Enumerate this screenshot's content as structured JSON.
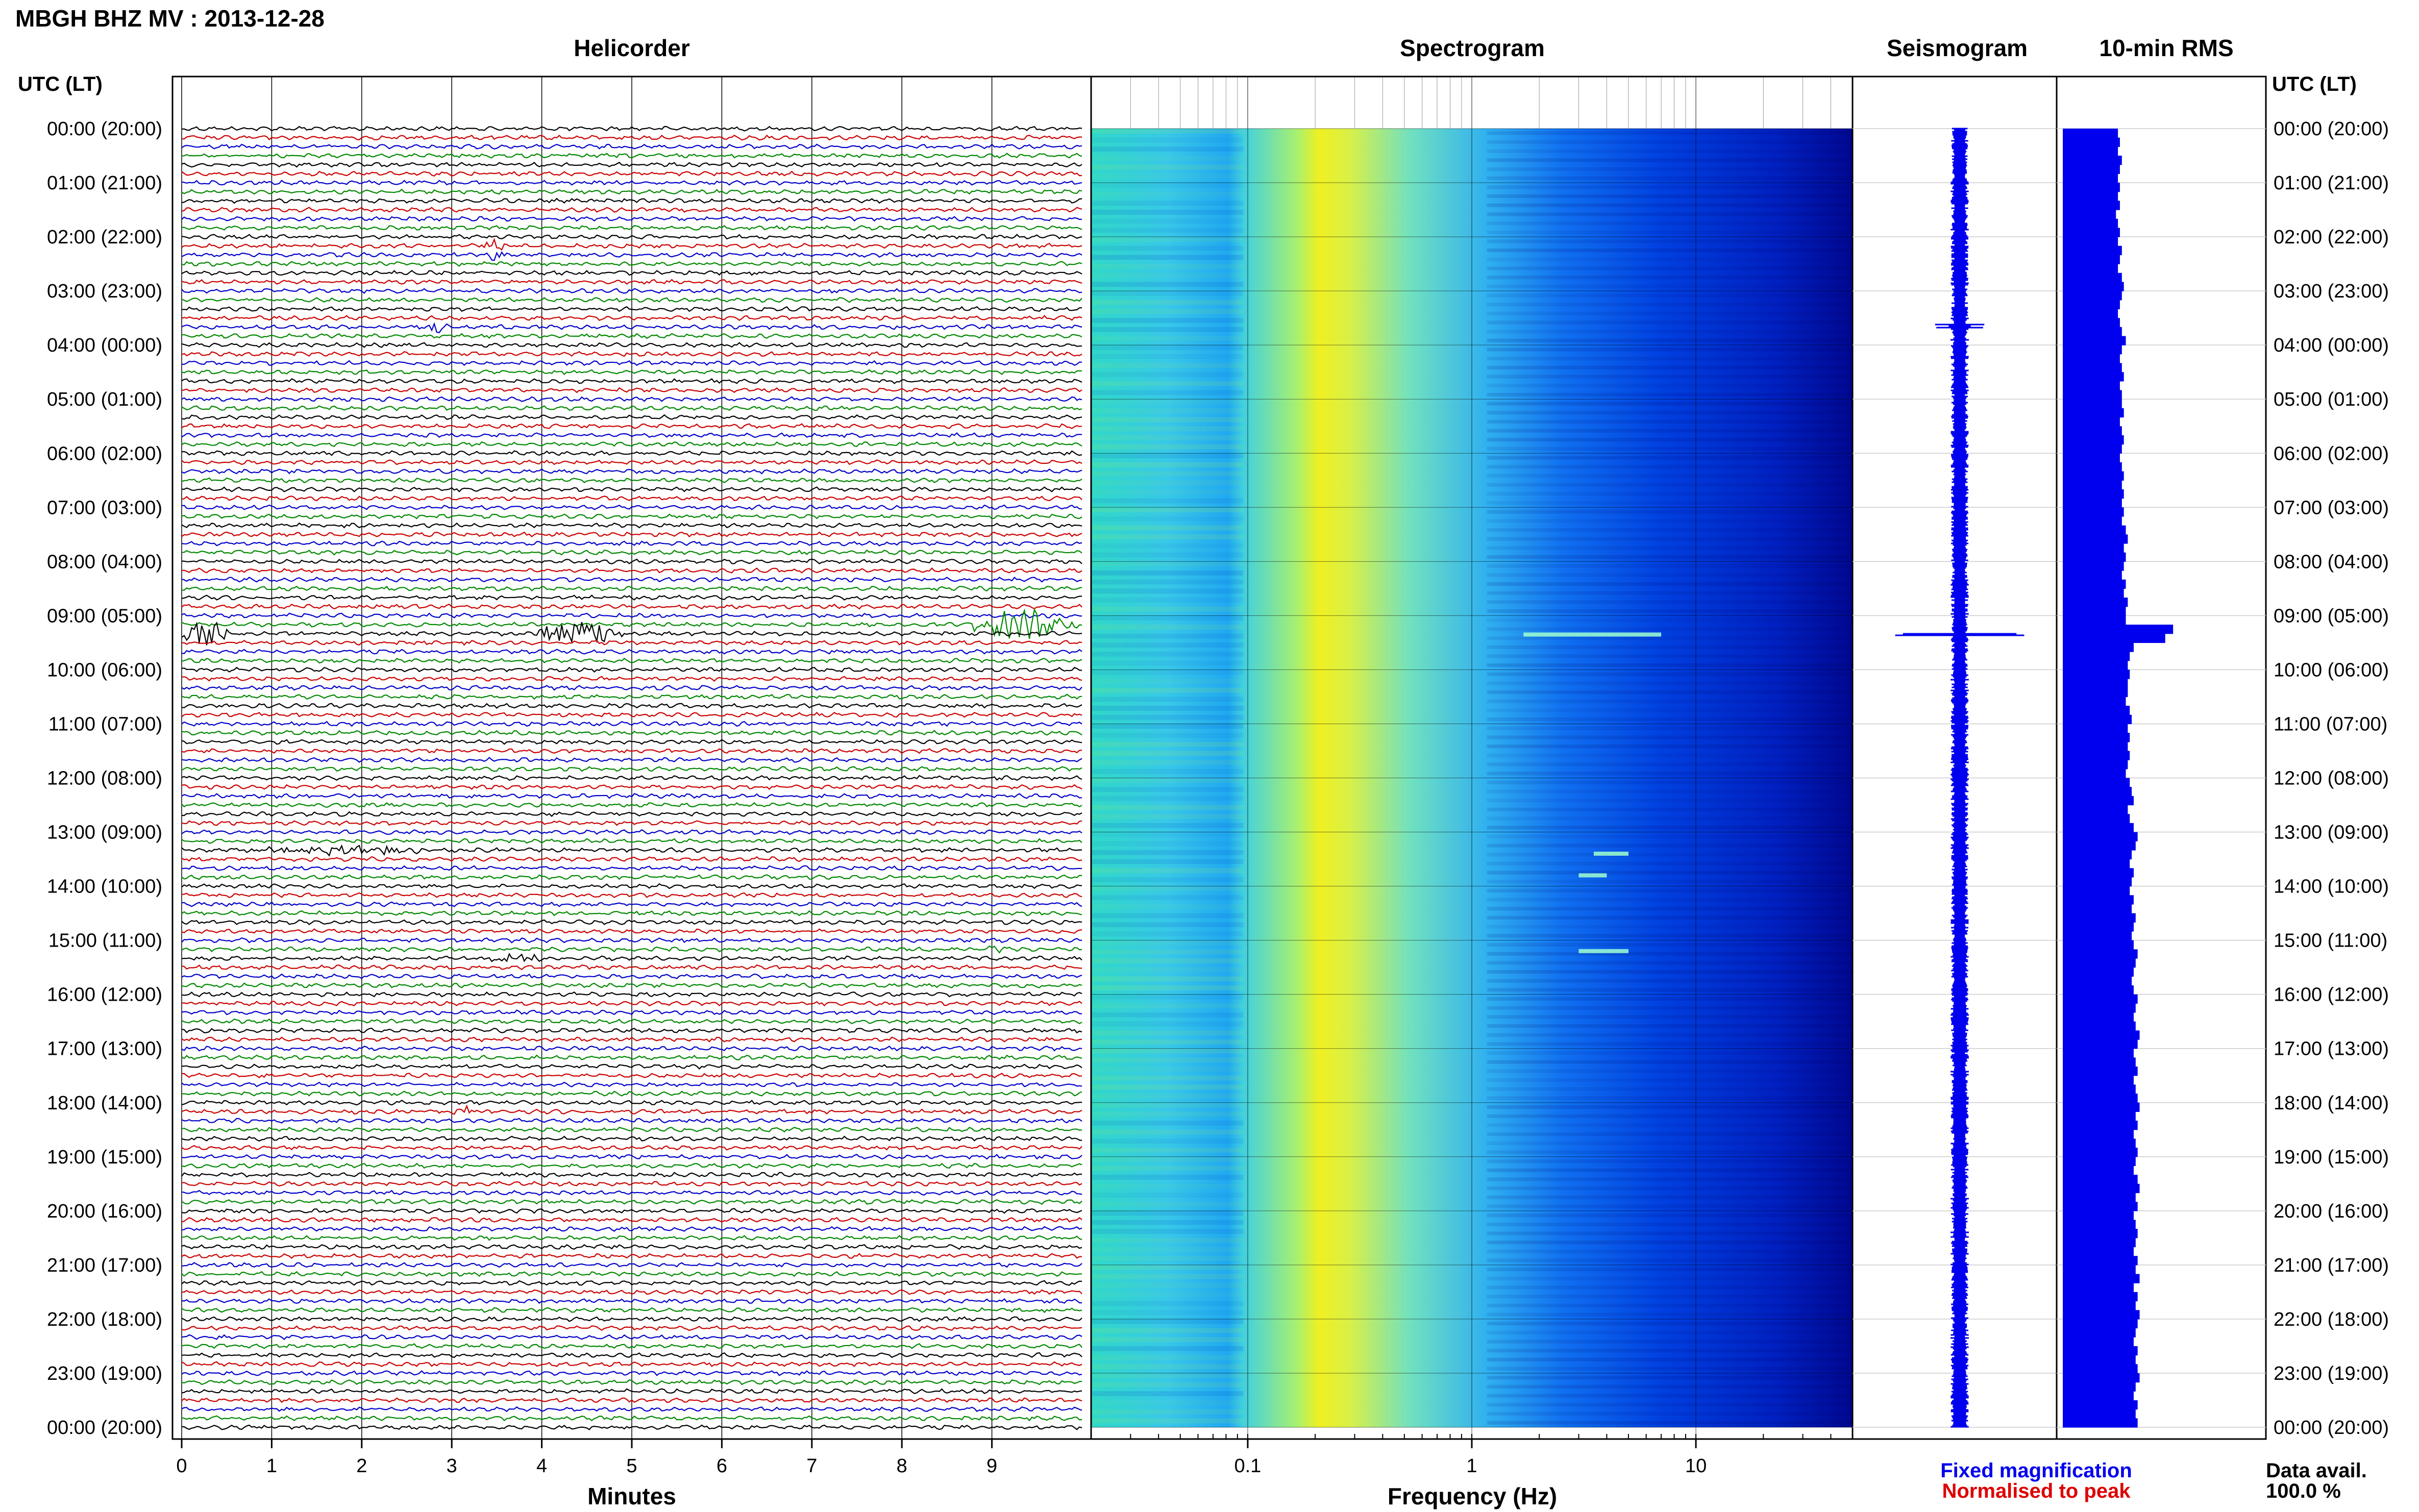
{
  "header": {
    "title": "MBGH BHZ MV : 2013-12-28"
  },
  "colors": {
    "trace_cycle": [
      "#000000",
      "#cc0000",
      "#0000cc",
      "#008800"
    ],
    "rms_fill": "#0000ee",
    "seismogram": "#0000ee",
    "fixed_legend": "#0000ee",
    "normalised_legend": "#dd0000",
    "spectrogram_scale": [
      "#000080",
      "#0000ff",
      "#00c0ff",
      "#40e0d0",
      "#b0f060",
      "#ffff00"
    ]
  },
  "legend": {
    "fixed_magnification": "Fixed magnification",
    "normalised_to_peak": "Normalised to peak"
  },
  "data_availability": {
    "label": "Data avail.",
    "value": "100.0 %"
  },
  "chart_data": [
    {
      "type": "line",
      "name": "helicorder",
      "title": "Helicorder",
      "xlabel": "Minutes",
      "ylabel": "UTC (LT)",
      "xlim": [
        0,
        10
      ],
      "x_ticks": [
        0,
        1,
        2,
        3,
        4,
        5,
        6,
        7,
        8,
        9
      ],
      "x_tick_labels": [
        "0",
        "1",
        "2",
        "3",
        "4",
        "5",
        "6",
        "7",
        "8",
        "9"
      ],
      "rows_per_hour": 6,
      "hour_labels_left": [
        "00:00 (20:00)",
        "01:00 (21:00)",
        "02:00 (22:00)",
        "03:00 (23:00)",
        "04:00 (00:00)",
        "05:00 (01:00)",
        "06:00 (02:00)",
        "07:00 (03:00)",
        "08:00 (04:00)",
        "09:00 (05:00)",
        "10:00 (06:00)",
        "11:00 (07:00)",
        "12:00 (08:00)",
        "13:00 (09:00)",
        "14:00 (10:00)",
        "15:00 (11:00)",
        "16:00 (12:00)",
        "17:00 (13:00)",
        "18:00 (14:00)",
        "19:00 (15:00)",
        "20:00 (16:00)",
        "21:00 (17:00)",
        "22:00 (18:00)",
        "23:00 (19:00)",
        "00:00 (20:00)"
      ],
      "events": [
        {
          "hour": 2.25,
          "start_min": 3.3,
          "end_min": 3.6,
          "amp": 1.0
        },
        {
          "hour": 3.7,
          "start_min": 2.7,
          "end_min": 2.95,
          "amp": 1.0
        },
        {
          "hour": 9.35,
          "start_min": 0.0,
          "end_min": 0.5,
          "amp": 2.6
        },
        {
          "hour": 9.35,
          "start_min": 3.9,
          "end_min": 4.9,
          "amp": 2.4
        },
        {
          "hour": 9.15,
          "start_min": 8.8,
          "end_min": 9.95,
          "amp": 2.8
        },
        {
          "hour": 13.3,
          "start_min": 0.7,
          "end_min": 2.8,
          "amp": 0.7
        },
        {
          "hour": 15.3,
          "start_min": 3.3,
          "end_min": 4.0,
          "amp": 0.7
        },
        {
          "hour": 15.2,
          "start_min": 8.9,
          "end_min": 9.2,
          "amp": 0.6
        },
        {
          "hour": 18.15,
          "start_min": 2.9,
          "end_min": 3.3,
          "amp": 0.9
        }
      ]
    },
    {
      "type": "heatmap",
      "name": "spectrogram",
      "title": "Spectrogram",
      "xlabel": "Frequency (Hz)",
      "x_scale": "log",
      "xlim": [
        0.02,
        50
      ],
      "x_ticks": [
        0.1,
        1,
        10
      ],
      "x_tick_labels": [
        "0.1",
        "1",
        "10"
      ],
      "peak_frequency_hz": 0.2,
      "narrowband_features": [
        {
          "hour": 9.35,
          "f_start": 1.7,
          "f_end": 7.0
        },
        {
          "hour": 13.4,
          "f_start": 3.5,
          "f_end": 5.0
        },
        {
          "hour": 13.8,
          "f_start": 3.0,
          "f_end": 4.0
        },
        {
          "hour": 15.2,
          "f_start": 3.0,
          "f_end": 5.0
        }
      ]
    },
    {
      "type": "line",
      "name": "seismogram",
      "title": "Seismogram",
      "baseline_halfwidth": 1,
      "events": [
        {
          "hour": 9.35,
          "amp": 10
        },
        {
          "hour": 3.65,
          "amp": 2
        }
      ]
    },
    {
      "type": "bar",
      "name": "rms",
      "title": "10-min RMS",
      "ylabel": "UTC (LT)",
      "xlim": [
        0,
        10
      ],
      "hour_labels_right": [
        "00:00 (20:00)",
        "01:00 (21:00)",
        "02:00 (22:00)",
        "03:00 (23:00)",
        "04:00 (00:00)",
        "05:00 (01:00)",
        "06:00 (02:00)",
        "07:00 (03:00)",
        "08:00 (04:00)",
        "09:00 (05:00)",
        "10:00 (06:00)",
        "11:00 (07:00)",
        "12:00 (08:00)",
        "13:00 (09:00)",
        "14:00 (10:00)",
        "15:00 (11:00)",
        "16:00 (12:00)",
        "17:00 (13:00)",
        "18:00 (14:00)",
        "19:00 (15:00)",
        "20:00 (16:00)",
        "21:00 (17:00)",
        "22:00 (18:00)",
        "23:00 (19:00)",
        "00:00 (20:00)"
      ],
      "values": [
        2.8,
        2.9,
        2.8,
        3.0,
        2.9,
        2.8,
        2.9,
        2.8,
        2.9,
        2.7,
        2.8,
        2.9,
        2.8,
        3.0,
        2.9,
        2.8,
        3.0,
        3.1,
        3.0,
        2.9,
        2.8,
        2.9,
        3.0,
        3.2,
        3.0,
        2.9,
        3.0,
        3.1,
        2.9,
        3.0,
        3.0,
        3.1,
        2.9,
        3.0,
        3.1,
        3.0,
        2.9,
        3.0,
        3.1,
        3.0,
        3.1,
        3.0,
        3.1,
        3.0,
        3.2,
        3.3,
        3.1,
        3.2,
        3.1,
        3.0,
        3.2,
        3.1,
        3.3,
        3.2,
        3.2,
        5.6,
        5.2,
        3.6,
        3.4,
        3.3,
        3.4,
        3.3,
        3.3,
        3.2,
        3.4,
        3.5,
        3.3,
        3.4,
        3.3,
        3.4,
        3.3,
        3.2,
        3.4,
        3.5,
        3.6,
        3.3,
        3.4,
        3.6,
        3.8,
        3.7,
        3.5,
        3.4,
        3.6,
        3.5,
        3.4,
        3.6,
        3.5,
        3.7,
        3.6,
        3.5,
        3.6,
        3.8,
        3.7,
        3.6,
        3.5,
        3.6,
        3.8,
        3.7,
        3.6,
        3.7,
        3.9,
        3.8,
        3.6,
        3.7,
        3.8,
        3.6,
        3.7,
        3.8,
        3.9,
        3.7,
        3.8,
        3.6,
        3.7,
        3.8,
        3.7,
        3.6,
        3.8,
        3.9,
        3.7,
        3.8,
        3.6,
        3.7,
        3.8,
        3.7,
        3.6,
        3.8,
        3.7,
        3.9,
        3.6,
        3.8,
        3.7,
        3.9,
        3.8,
        3.7,
        3.6,
        3.8,
        3.7,
        3.8,
        3.9,
        3.7,
        3.6,
        3.8,
        3.7,
        3.8
      ]
    }
  ]
}
